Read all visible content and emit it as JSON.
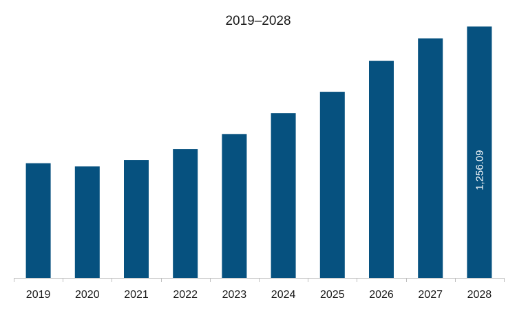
{
  "chart_data": {
    "type": "bar",
    "title": "2019–2028",
    "xlabel": "",
    "ylabel": "",
    "categories": [
      "2019",
      "2020",
      "2021",
      "2022",
      "2023",
      "2024",
      "2025",
      "2026",
      "2027",
      "2028"
    ],
    "values": [
      573,
      557,
      589,
      644,
      719,
      823,
      930,
      1085,
      1197,
      1256.09
    ],
    "data_labels": [
      null,
      null,
      null,
      null,
      null,
      null,
      null,
      null,
      null,
      "1,256.09"
    ],
    "ylim": [
      0,
      1330
    ],
    "grid": false,
    "legend": "none",
    "bar_color": "#06517F",
    "axis_color": "#bfbfbf"
  }
}
